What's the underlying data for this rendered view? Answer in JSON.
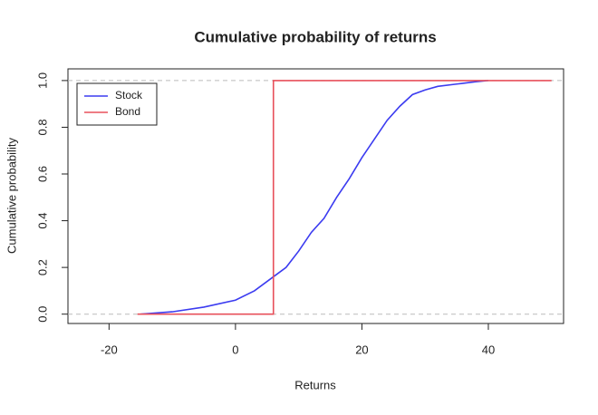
{
  "chart_data": {
    "type": "step-line",
    "title": "Cumulative probability of returns",
    "x_label": "Returns",
    "y_label": "Cumulative probability",
    "xlim": [
      -26.5,
      51.9
    ],
    "xticks": [
      -20,
      0,
      20,
      40
    ],
    "ylim": [
      -0.04,
      1.05
    ],
    "yticks": [
      {
        "value": 0,
        "label": "0.0"
      },
      0.2,
      0.4,
      0.6,
      0.8,
      {
        "value": 1,
        "label": "1.0"
      }
    ],
    "hlines": [
      0,
      1
    ],
    "legend": "top-left",
    "series": [
      {
        "name": "Stock",
        "color": "#3b3bf0",
        "x": [
          -15,
          -10,
          -5,
          0,
          3,
          6,
          8,
          10,
          12,
          14,
          16,
          18,
          20,
          22,
          24,
          26,
          28,
          30,
          32,
          35,
          38,
          40
        ],
        "values": [
          0,
          0.01,
          0.03,
          0.06,
          0.1,
          0.16,
          0.2,
          0.27,
          0.35,
          0.41,
          0.5,
          0.58,
          0.67,
          0.75,
          0.83,
          0.89,
          0.94,
          0.96,
          0.975,
          0.985,
          0.995,
          1
        ]
      },
      {
        "name": "Bond",
        "color": "#e8505b",
        "x": [
          -15.5,
          6,
          6,
          50
        ],
        "values": [
          0,
          0,
          1,
          1
        ]
      }
    ]
  }
}
